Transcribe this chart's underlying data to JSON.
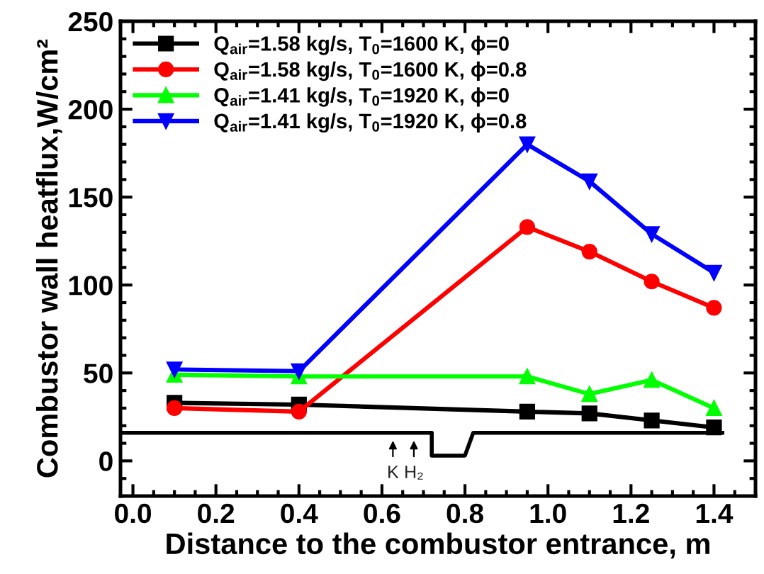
{
  "chart_data": {
    "type": "line",
    "xlabel": "Distance to the combustor entrance, m",
    "ylabel": "Combustor wall heatflux,W/cm²",
    "x": [
      0.1,
      0.4,
      0.95,
      1.1,
      1.25,
      1.4
    ],
    "series": [
      {
        "name": "Q$_{air}$=1.58 kg/s, T$_{0}$=1600 K, ϕ=0",
        "color": "#000000",
        "marker": "square",
        "values": [
          33,
          32,
          28,
          27,
          23,
          19
        ]
      },
      {
        "name": "Q$_{air}$=1.58 kg/s, T$_{0}$=1600 K, ϕ=0.8",
        "color": "#ff0000",
        "marker": "circle",
        "values": [
          30,
          28,
          133,
          119,
          102,
          87
        ]
      },
      {
        "name": "Q$_{air}$=1.41 kg/s, T$_{0}$=1920 K, ϕ=0",
        "color": "#00ff00",
        "marker": "triangle",
        "values": [
          49,
          48,
          48,
          38,
          46,
          30
        ]
      },
      {
        "name": "Q$_{air}$=1.41 kg/s, T$_{0}$=1920 K, ϕ=0.8",
        "color": "#0000ff",
        "marker": "triangle_down",
        "values": [
          52,
          51,
          180,
          159,
          129,
          107
        ]
      },
      {
        "color": "#000000",
        "marker": "none",
        "x": [
          -0.03,
          0.72,
          0.72,
          0.8,
          0.82,
          1.42
        ],
        "values": [
          16,
          16,
          3,
          3,
          16,
          16
        ]
      }
    ],
    "annotations": [
      "K",
      "H₂"
    ],
    "xlim": [
      -0.03,
      1.5
    ],
    "xticks": [
      {
        "value": 0,
        "label": "0.0"
      },
      0.2,
      0.4,
      0.6,
      0.8,
      {
        "value": 1,
        "label": "1.0"
      },
      1.2,
      1.4
    ],
    "ylim": [
      -20,
      250
    ],
    "yticks": [
      0,
      50,
      100,
      150,
      200,
      250
    ],
    "legend": "top left",
    "grid": false,
    "line_style": "solid"
  }
}
